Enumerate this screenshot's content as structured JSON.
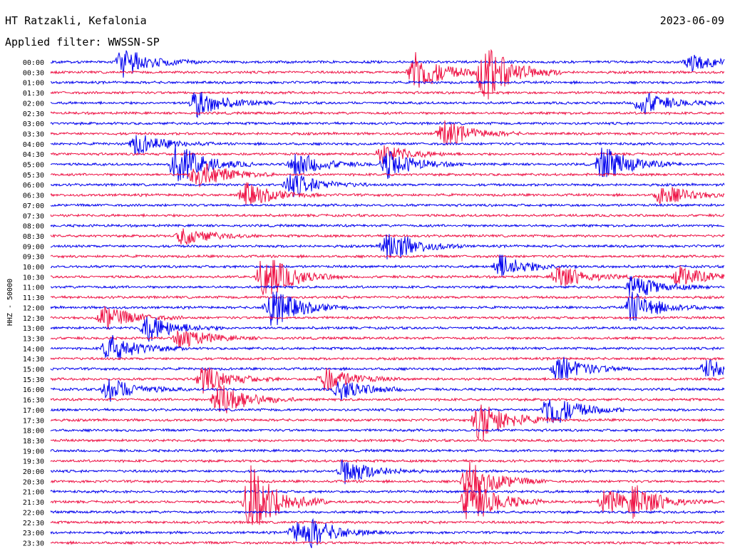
{
  "header": {
    "station": "HT Ratzakli, Kefalonia",
    "date": "2023-06-09",
    "filter": "Applied filter: WWSSN-SP"
  },
  "chart_data": {
    "type": "line",
    "title": "HT Ratzakli, Kefalonia",
    "ylabel": "HHZ - 50000",
    "row_times": [
      "00:00",
      "00:30",
      "01:00",
      "01:30",
      "02:00",
      "02:30",
      "03:00",
      "03:30",
      "04:00",
      "04:30",
      "05:00",
      "05:30",
      "06:00",
      "06:30",
      "07:00",
      "07:30",
      "08:00",
      "08:30",
      "09:00",
      "09:30",
      "10:00",
      "10:30",
      "11:00",
      "11:30",
      "12:00",
      "12:30",
      "13:00",
      "13:30",
      "14:00",
      "14:30",
      "15:00",
      "15:30",
      "16:00",
      "16:30",
      "17:00",
      "17:30",
      "18:00",
      "18:30",
      "19:00",
      "19:30",
      "20:00",
      "20:30",
      "21:00",
      "21:30",
      "22:00",
      "22:30",
      "23:00",
      "23:30"
    ],
    "colors": [
      "#0000ee",
      "#ee1144"
    ],
    "x_span_minutes": 30,
    "events": [
      {
        "row": 0,
        "minute": 3.2,
        "amp": 1.0
      },
      {
        "row": 0,
        "minute": 28.5,
        "amp": 0.6
      },
      {
        "row": 1,
        "minute": 16.2,
        "amp": 1.4
      },
      {
        "row": 1,
        "minute": 19.3,
        "amp": 2.0
      },
      {
        "row": 4,
        "minute": 6.5,
        "amp": 0.9
      },
      {
        "row": 4,
        "minute": 26.3,
        "amp": 0.8
      },
      {
        "row": 7,
        "minute": 17.5,
        "amp": 0.9
      },
      {
        "row": 8,
        "minute": 3.8,
        "amp": 0.7
      },
      {
        "row": 9,
        "minute": 14.8,
        "amp": 0.6
      },
      {
        "row": 10,
        "minute": 5.6,
        "amp": 1.4
      },
      {
        "row": 10,
        "minute": 10.9,
        "amp": 0.8
      },
      {
        "row": 10,
        "minute": 15.0,
        "amp": 0.9
      },
      {
        "row": 10,
        "minute": 24.6,
        "amp": 1.2
      },
      {
        "row": 11,
        "minute": 6.5,
        "amp": 1.0
      },
      {
        "row": 12,
        "minute": 10.7,
        "amp": 0.8
      },
      {
        "row": 13,
        "minute": 8.7,
        "amp": 0.8
      },
      {
        "row": 13,
        "minute": 27.2,
        "amp": 0.7
      },
      {
        "row": 17,
        "minute": 5.9,
        "amp": 0.6
      },
      {
        "row": 18,
        "minute": 15.0,
        "amp": 1.2
      },
      {
        "row": 20,
        "minute": 20.0,
        "amp": 0.8
      },
      {
        "row": 21,
        "minute": 9.5,
        "amp": 1.6
      },
      {
        "row": 21,
        "minute": 22.6,
        "amp": 0.8
      },
      {
        "row": 21,
        "minute": 28.0,
        "amp": 0.7
      },
      {
        "row": 22,
        "minute": 25.9,
        "amp": 0.8
      },
      {
        "row": 24,
        "minute": 9.8,
        "amp": 1.4
      },
      {
        "row": 24,
        "minute": 25.9,
        "amp": 1.0
      },
      {
        "row": 25,
        "minute": 2.4,
        "amp": 0.8
      },
      {
        "row": 26,
        "minute": 4.3,
        "amp": 0.9
      },
      {
        "row": 27,
        "minute": 5.8,
        "amp": 0.7
      },
      {
        "row": 28,
        "minute": 2.6,
        "amp": 1.0
      },
      {
        "row": 30,
        "minute": 22.6,
        "amp": 0.9
      },
      {
        "row": 30,
        "minute": 29.2,
        "amp": 0.6
      },
      {
        "row": 31,
        "minute": 6.8,
        "amp": 0.9
      },
      {
        "row": 31,
        "minute": 12.2,
        "amp": 0.8
      },
      {
        "row": 32,
        "minute": 2.6,
        "amp": 0.8
      },
      {
        "row": 32,
        "minute": 12.9,
        "amp": 0.7
      },
      {
        "row": 33,
        "minute": 7.5,
        "amp": 1.2
      },
      {
        "row": 34,
        "minute": 22.2,
        "amp": 1.2
      },
      {
        "row": 35,
        "minute": 19.1,
        "amp": 1.4
      },
      {
        "row": 40,
        "minute": 13.1,
        "amp": 0.9
      },
      {
        "row": 41,
        "minute": 18.6,
        "amp": 1.4
      },
      {
        "row": 43,
        "minute": 8.9,
        "amp": 2.4
      },
      {
        "row": 43,
        "minute": 18.6,
        "amp": 1.6
      },
      {
        "row": 43,
        "minute": 24.7,
        "amp": 0.8
      },
      {
        "row": 43,
        "minute": 26.0,
        "amp": 0.9
      },
      {
        "row": 46,
        "minute": 10.9,
        "amp": 0.7
      },
      {
        "row": 46,
        "minute": 11.6,
        "amp": 0.6
      }
    ]
  }
}
